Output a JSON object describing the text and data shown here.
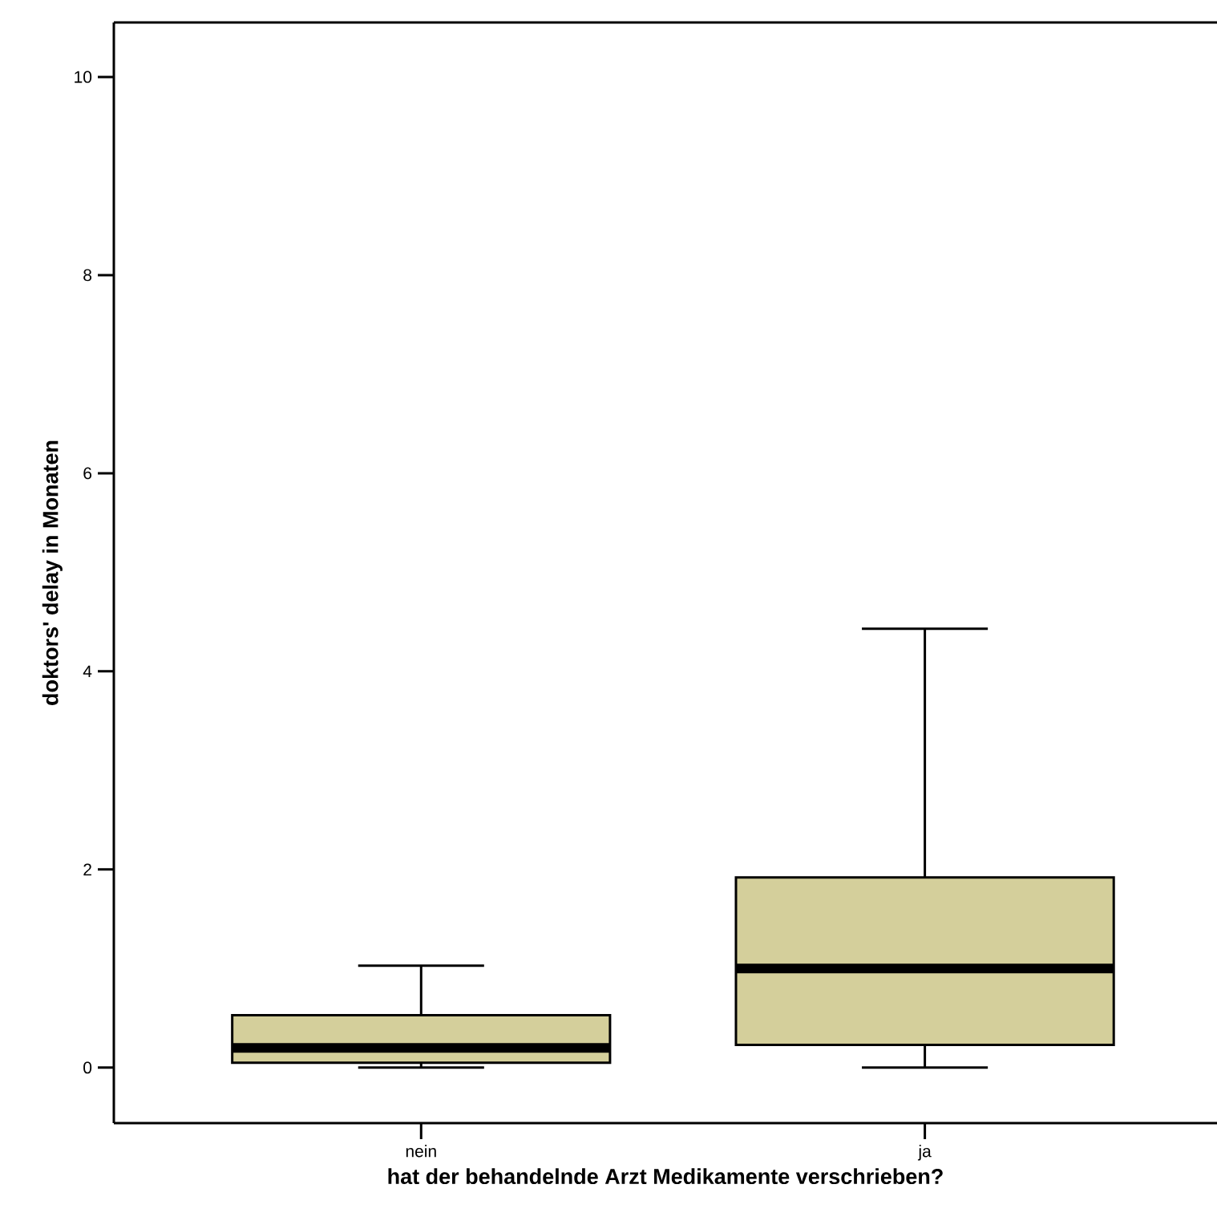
{
  "chart_data": {
    "type": "box",
    "xlabel": "hat der behandelnde Arzt Medikamente verschrieben?",
    "ylabel": "doktors' delay in Monaten",
    "categories": [
      "nein",
      "ja"
    ],
    "series": [
      {
        "color": "#d4cf9b",
        "boxes": [
          {
            "low": 0,
            "q1": 0.05,
            "median": 0.2,
            "q3": 0.53,
            "high": 1.03
          },
          {
            "low": 0,
            "q1": 0.23,
            "median": 1.0,
            "q3": 1.92,
            "high": 4.43
          }
        ]
      }
    ],
    "ylim": [
      -0.56,
      10.55
    ],
    "yticks": [
      0,
      2,
      4,
      6,
      8,
      10
    ]
  }
}
